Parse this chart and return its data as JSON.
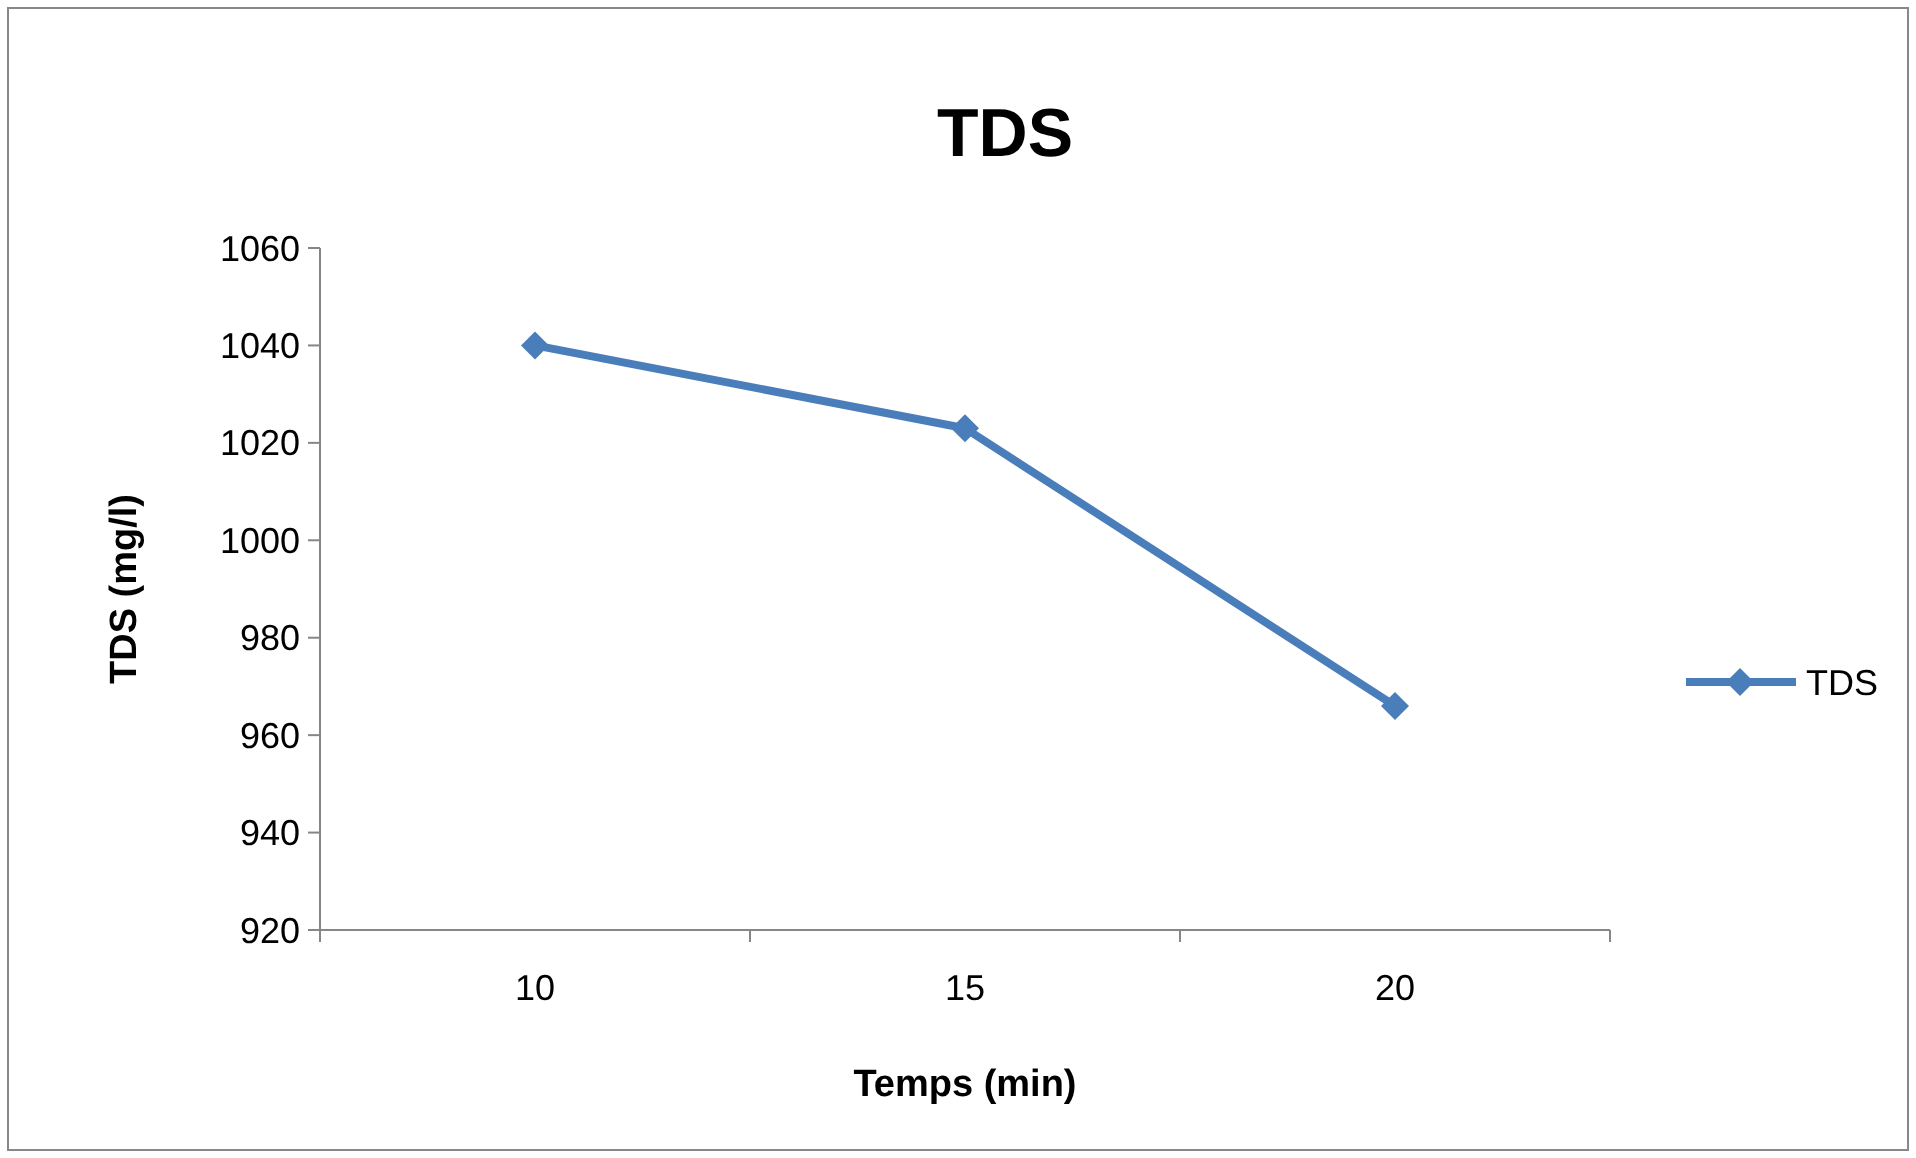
{
  "chart_data": {
    "type": "line",
    "title": "TDS",
    "xlabel": "Temps (min)",
    "ylabel": "TDS (mg/l)",
    "categories": [
      "10",
      "15",
      "20"
    ],
    "series": [
      {
        "name": "TDS",
        "color": "#4a7ebb",
        "values": [
          1040,
          1023,
          966
        ]
      }
    ],
    "ylim": [
      920,
      1060
    ],
    "yticks": [
      920,
      940,
      960,
      980,
      1000,
      1020,
      1040,
      1060
    ],
    "legend": "right",
    "marker": "diamond",
    "line_style": "solid"
  }
}
